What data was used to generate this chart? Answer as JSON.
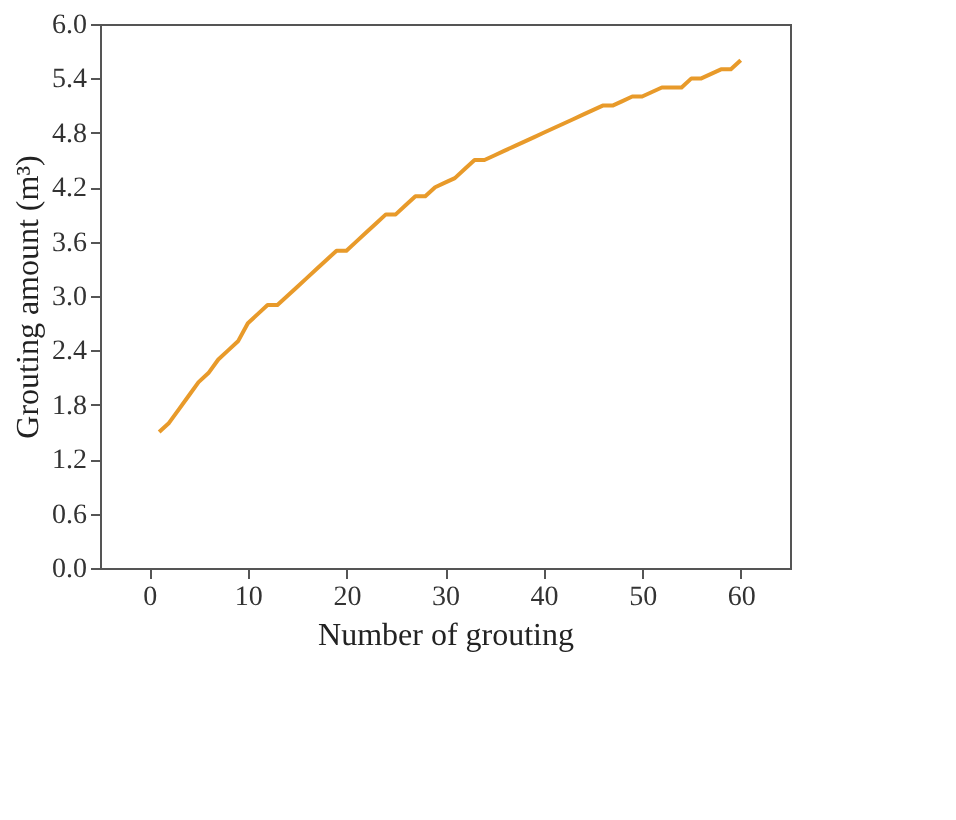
{
  "chart_data": {
    "type": "line",
    "xlabel": "Number of grouting",
    "ylabel": "Grouting amount (m³)",
    "x": [
      1,
      2,
      3,
      4,
      5,
      6,
      7,
      8,
      9,
      10,
      11,
      12,
      13,
      14,
      15,
      16,
      17,
      18,
      19,
      20,
      21,
      22,
      23,
      24,
      25,
      26,
      27,
      28,
      29,
      30,
      31,
      32,
      33,
      34,
      35,
      36,
      37,
      38,
      39,
      40,
      41,
      42,
      43,
      44,
      45,
      46,
      47,
      48,
      49,
      50,
      51,
      52,
      53,
      54,
      55,
      56,
      57,
      58,
      59,
      60
    ],
    "series": [
      {
        "color": "#e89a2a",
        "values": [
          1.5,
          1.6,
          1.75,
          1.9,
          2.05,
          2.15,
          2.3,
          2.4,
          2.5,
          2.7,
          2.8,
          2.9,
          2.9,
          3.0,
          3.1,
          3.2,
          3.3,
          3.4,
          3.5,
          3.5,
          3.6,
          3.7,
          3.8,
          3.9,
          3.9,
          4.0,
          4.1,
          4.1,
          4.2,
          4.25,
          4.3,
          4.4,
          4.5,
          4.5,
          4.55,
          4.6,
          4.65,
          4.7,
          4.75,
          4.8,
          4.85,
          4.9,
          4.95,
          5.0,
          5.05,
          5.1,
          5.1,
          5.15,
          5.2,
          5.2,
          5.25,
          5.3,
          5.3,
          5.3,
          5.4,
          5.4,
          5.45,
          5.5,
          5.5,
          5.6
        ]
      }
    ],
    "xlim": [
      -5,
      65
    ],
    "xticks": [
      0,
      10,
      20,
      30,
      40,
      50,
      60
    ],
    "ylim": [
      0,
      6
    ],
    "yticks": [
      {
        "value": 0,
        "label": "0.0"
      },
      0.6,
      1.2,
      1.8,
      2.4,
      {
        "value": 3,
        "label": "3.0"
      },
      3.6,
      4.2,
      4.8,
      5.4,
      {
        "value": 6,
        "label": "6.0"
      }
    ],
    "grid": false,
    "marker": "none",
    "line_style": "solid"
  }
}
